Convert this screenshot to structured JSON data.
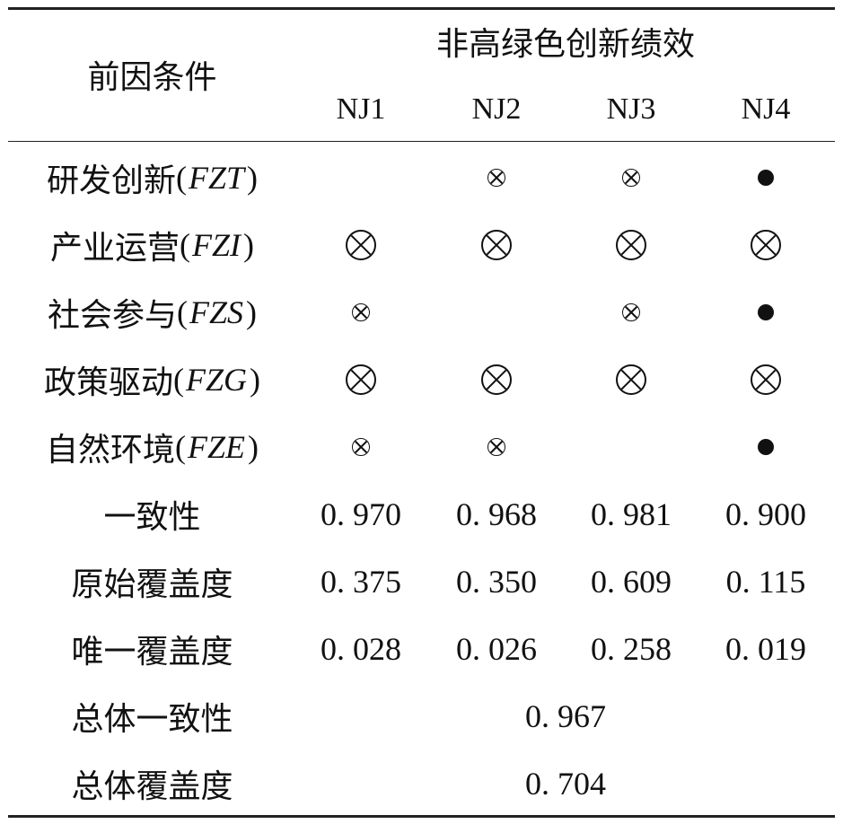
{
  "table": {
    "header": {
      "condition_label": "前因条件",
      "group_label": "非高绿色创新绩效",
      "columns": [
        "NJ1",
        "NJ2",
        "NJ3",
        "NJ4"
      ]
    },
    "condition_rows": [
      {
        "name": "研发创新",
        "code": "FZT",
        "cells": [
          "",
          "periph-absent",
          "periph-absent",
          "periph-present"
        ]
      },
      {
        "name": "产业运营",
        "code": "FZI",
        "cells": [
          "core-absent",
          "core-absent",
          "core-absent",
          "core-absent"
        ]
      },
      {
        "name": "社会参与",
        "code": "FZS",
        "cells": [
          "periph-absent",
          "",
          "periph-absent",
          "periph-present"
        ]
      },
      {
        "name": "政策驱动",
        "code": "FZG",
        "cells": [
          "core-absent",
          "core-absent",
          "core-absent",
          "core-absent"
        ]
      },
      {
        "name": "自然环境",
        "code": "FZE",
        "cells": [
          "periph-absent",
          "periph-absent",
          "",
          "periph-present"
        ]
      }
    ],
    "metric_rows": [
      {
        "label": "一致性",
        "values": [
          "0. 970",
          "0. 968",
          "0. 981",
          "0. 900"
        ]
      },
      {
        "label": "原始覆盖度",
        "values": [
          "0. 375",
          "0. 350",
          "0. 609",
          "0. 115"
        ]
      },
      {
        "label": "唯一覆盖度",
        "values": [
          "0. 028",
          "0. 026",
          "0. 258",
          "0. 019"
        ]
      }
    ],
    "overall_rows": [
      {
        "label": "总体一致性",
        "value": "0. 967"
      },
      {
        "label": "总体覆盖度",
        "value": "0. 704"
      }
    ]
  }
}
